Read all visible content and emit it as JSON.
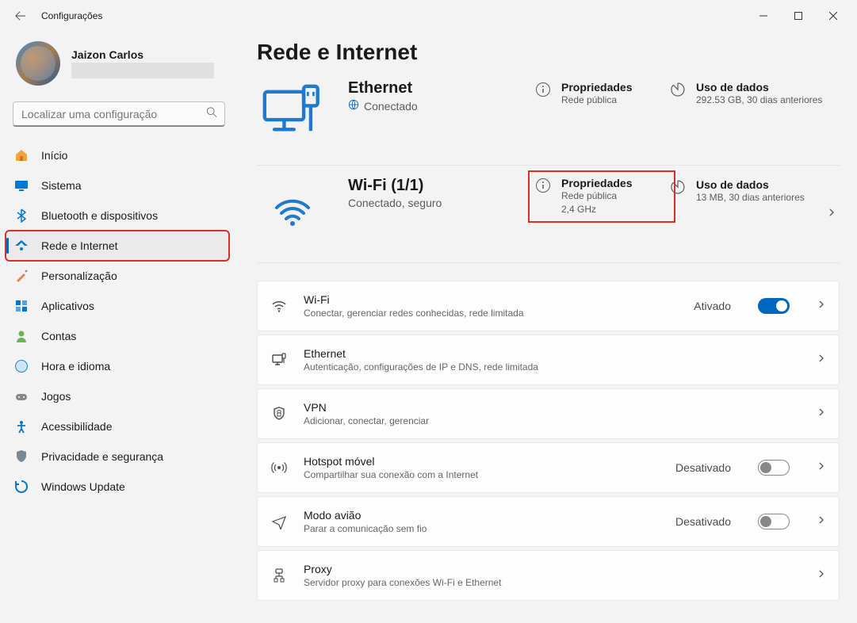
{
  "window": {
    "title": "Configurações"
  },
  "profile": {
    "name": "Jaizon Carlos"
  },
  "search": {
    "placeholder": "Localizar uma configuração"
  },
  "sidebar": {
    "items": [
      {
        "label": "Início",
        "icon": "home",
        "color": "#f2a33c"
      },
      {
        "label": "Sistema",
        "icon": "system",
        "color": "#0078d4"
      },
      {
        "label": "Bluetooth e dispositivos",
        "icon": "bluetooth",
        "color": "#0078d4"
      },
      {
        "label": "Rede e Internet",
        "icon": "wifi",
        "color": "#0078d4"
      },
      {
        "label": "Personalização",
        "icon": "brush",
        "color": "#e8814e"
      },
      {
        "label": "Aplicativos",
        "icon": "apps",
        "color": "#0078d4"
      },
      {
        "label": "Contas",
        "icon": "person",
        "color": "#6fb253"
      },
      {
        "label": "Hora e idioma",
        "icon": "clock",
        "color": "#0078d4"
      },
      {
        "label": "Jogos",
        "icon": "game",
        "color": "#888888"
      },
      {
        "label": "Acessibilidade",
        "icon": "access",
        "color": "#0078d4"
      },
      {
        "label": "Privacidade e segurança",
        "icon": "shield",
        "color": "#7a8896"
      },
      {
        "label": "Windows Update",
        "icon": "update",
        "color": "#0078d4"
      }
    ],
    "selectedIndex": 3
  },
  "page": {
    "title": "Rede e Internet"
  },
  "ethernet": {
    "title": "Ethernet",
    "status": "Conectado",
    "props": {
      "title": "Propriedades",
      "sub": "Rede pública"
    },
    "data": {
      "title": "Uso de dados",
      "sub": "292.53 GB, 30 dias anteriores"
    }
  },
  "wifi": {
    "title": "Wi-Fi (1/1)",
    "status": "Conectado, seguro",
    "props": {
      "title": "Propriedades",
      "sub1": "Rede pública",
      "sub2": "2,4 GHz"
    },
    "data": {
      "title": "Uso de dados",
      "sub": "13 MB, 30 dias anteriores"
    }
  },
  "cards": [
    {
      "title": "Wi-Fi",
      "sub": "Conectar, gerenciar redes conhecidas, rede limitada",
      "state": "Ativado",
      "toggle": "on",
      "icon": "wifi"
    },
    {
      "title": "Ethernet",
      "sub": "Autenticação, configurações de IP e DNS, rede limitada",
      "icon": "ethernet"
    },
    {
      "title": "VPN",
      "sub": "Adicionar, conectar, gerenciar",
      "icon": "vpn"
    },
    {
      "title": "Hotspot móvel",
      "sub": "Compartilhar sua conexão com a Internet",
      "state": "Desativado",
      "toggle": "off",
      "icon": "hotspot"
    },
    {
      "title": "Modo avião",
      "sub": "Parar a comunicação sem fio",
      "state": "Desativado",
      "toggle": "off",
      "icon": "plane"
    },
    {
      "title": "Proxy",
      "sub": "Servidor proxy para conexões Wi-Fi e Ethernet",
      "icon": "proxy"
    }
  ],
  "colors": {
    "accent": "#0067c0",
    "highlight": "#d93025"
  }
}
